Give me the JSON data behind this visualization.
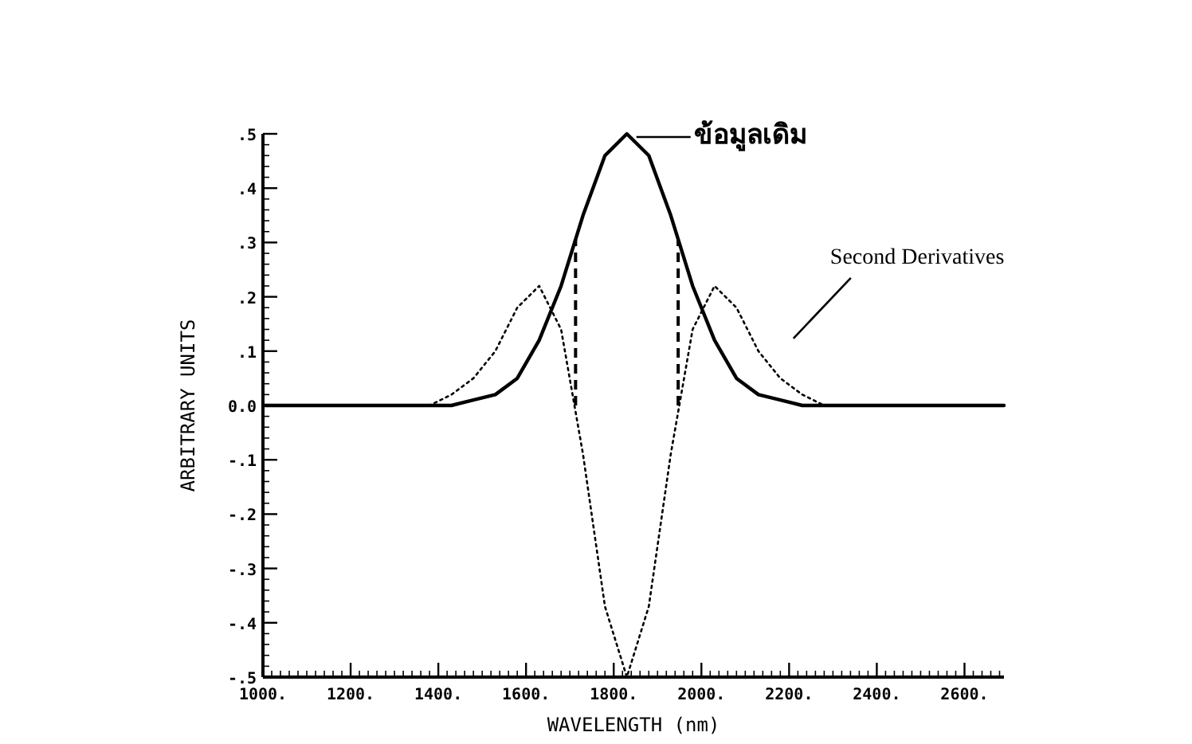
{
  "chart_data": {
    "type": "line",
    "xlabel": "WAVELENGTH (nm)",
    "ylabel": "ARBITRARY UNITS",
    "x": [
      1000,
      1330,
      1380,
      1430,
      1480,
      1530,
      1580,
      1630,
      1680,
      1730,
      1780,
      1830,
      1880,
      1930,
      1980,
      2030,
      2080,
      2130,
      2180,
      2230,
      2280,
      2330,
      2690
    ],
    "series": [
      {
        "name": "ข้อมูลเดิม",
        "color": "#000000",
        "line_style": "solid",
        "values": [
          0,
          0,
          0,
          0,
          0.01,
          0.02,
          0.05,
          0.12,
          0.22,
          0.35,
          0.46,
          0.5,
          0.46,
          0.35,
          0.22,
          0.12,
          0.05,
          0.02,
          0.01,
          0,
          0,
          0,
          0
        ]
      },
      {
        "name": "Second Derivatives",
        "color": "#000000",
        "line_style": "dotted",
        "values": [
          0,
          0,
          0,
          0.02,
          0.05,
          0.1,
          0.18,
          0.22,
          0.14,
          -0.09,
          -0.37,
          -0.5,
          -0.37,
          -0.09,
          0.14,
          0.22,
          0.18,
          0.1,
          0.05,
          0.02,
          0,
          0,
          0
        ]
      }
    ],
    "xlim": [
      1000,
      2690
    ],
    "ylim": [
      -0.5,
      0.5
    ],
    "xticks": [
      {
        "value": 1000,
        "label": "1000."
      },
      {
        "value": 1200,
        "label": "1200."
      },
      {
        "value": 1400,
        "label": "1400."
      },
      {
        "value": 1600,
        "label": "1600."
      },
      {
        "value": 1800,
        "label": "1800."
      },
      {
        "value": 2000,
        "label": "2000."
      },
      {
        "value": 2200,
        "label": "2200."
      },
      {
        "value": 2400,
        "label": "2400."
      },
      {
        "value": 2600,
        "label": "2600."
      }
    ],
    "yticks": [
      {
        "value": -0.5,
        "label": "-.5"
      },
      {
        "value": -0.4,
        "label": "-.4"
      },
      {
        "value": -0.3,
        "label": "-.3"
      },
      {
        "value": -0.2,
        "label": "-.2"
      },
      {
        "value": -0.1,
        "label": "-.1"
      },
      {
        "value": 0,
        "label": "0.0"
      },
      {
        "value": 0.1,
        "label": ".1"
      },
      {
        "value": 0.2,
        "label": ".2"
      },
      {
        "value": 0.3,
        "label": ".3"
      },
      {
        "value": 0.4,
        "label": ".4"
      },
      {
        "value": 0.5,
        "label": ".5"
      }
    ],
    "ref_lines": [
      {
        "axis": "x",
        "value": 1713,
        "line_style": "dashed"
      },
      {
        "axis": "x",
        "value": 1947,
        "line_style": "dashed"
      }
    ]
  }
}
